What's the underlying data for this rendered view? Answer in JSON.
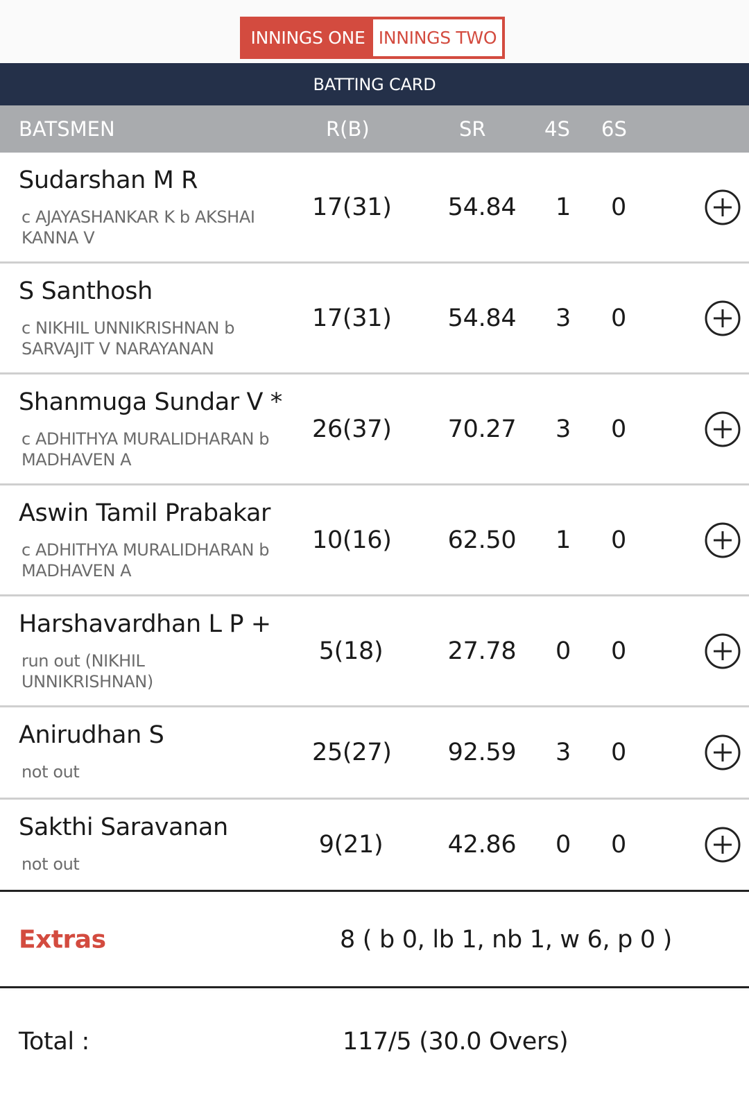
{
  "tabs": {
    "innings_one": "INNINGS ONE",
    "innings_two": "INNINGS TWO",
    "active": "innings_one"
  },
  "section_title": "BATTING CARD",
  "columns": {
    "batsmen": "BATSMEN",
    "runs_balls": "R(B)",
    "strike_rate": "SR",
    "fours": "4S",
    "sixes": "6S"
  },
  "batsmen": [
    {
      "name": "Sudarshan M R",
      "dismissal": "c AJAYASHANKAR K b AKSHAI KANNA V",
      "rb": "17(31)",
      "sr": "54.84",
      "fours": "1",
      "sixes": "0"
    },
    {
      "name": "S Santhosh",
      "dismissal": "c NIKHIL UNNIKRISHNAN b SARVAJIT V NARAYANAN",
      "rb": "17(31)",
      "sr": "54.84",
      "fours": "3",
      "sixes": "0"
    },
    {
      "name": "Shanmuga Sundar V *",
      "dismissal": "c ADHITHYA MURALIDHARAN b MADHAVEN A",
      "rb": "26(37)",
      "sr": "70.27",
      "fours": "3",
      "sixes": "0"
    },
    {
      "name": "Aswin Tamil Prabakar",
      "dismissal": "c ADHITHYA MURALIDHARAN b MADHAVEN A",
      "rb": "10(16)",
      "sr": "62.50",
      "fours": "1",
      "sixes": "0"
    },
    {
      "name": "Harshavardhan L P +",
      "dismissal": "run out (NIKHIL UNNIKRISHNAN)",
      "rb": "5(18)",
      "sr": "27.78",
      "fours": "0",
      "sixes": "0"
    },
    {
      "name": "Anirudhan S",
      "dismissal": "not out",
      "rb": "25(27)",
      "sr": "92.59",
      "fours": "3",
      "sixes": "0"
    },
    {
      "name": "Sakthi Saravanan",
      "dismissal": "not out",
      "rb": "9(21)",
      "sr": "42.86",
      "fours": "0",
      "sixes": "0"
    }
  ],
  "extras": {
    "label": "Extras",
    "value": "8 ( b 0, lb 1, nb 1, w 6, p 0 )"
  },
  "total": {
    "label": "Total :",
    "value": "117/5 (30.0 Overs)"
  },
  "colors": {
    "accent": "#d34b3f",
    "header_bg": "#243049",
    "column_header_bg": "#a9abae"
  },
  "icons": {
    "expand": "plus-circle-icon"
  }
}
